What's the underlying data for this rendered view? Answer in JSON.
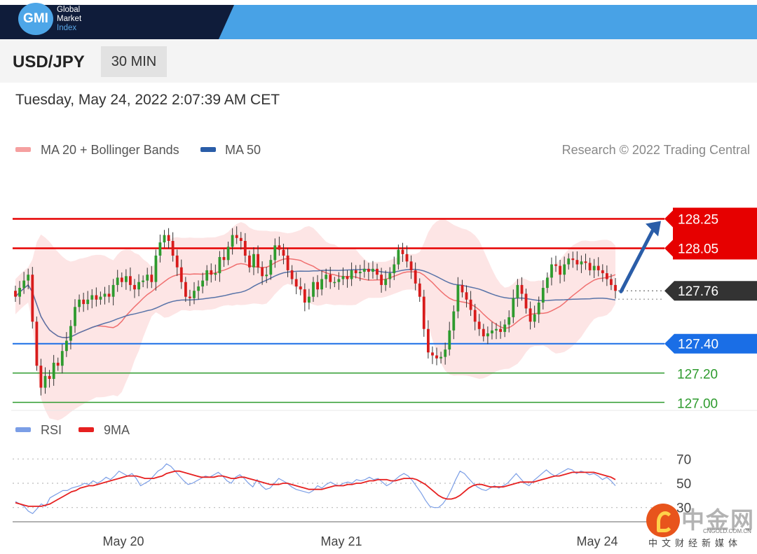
{
  "brand": {
    "logo": "GMI",
    "name_lines": [
      "Global",
      "Market",
      "Index"
    ]
  },
  "header": {
    "pair": "USD/JPY",
    "timeframe": "30 MIN",
    "datetime": "Tuesday, May 24, 2022 2:07:39 AM CET"
  },
  "legend": {
    "ma20": "MA 20 + Bollinger Bands",
    "ma50": "MA 50",
    "credit": "Research © 2022 Trading Central"
  },
  "rsi_legend": {
    "rsi": "RSI",
    "ma9": "9MA"
  },
  "watermark": {
    "title": "中金网",
    "url": "CNGOLD.COM.CN",
    "subtitle": "中文财经新媒体"
  },
  "colors": {
    "resistance": "#e60000",
    "support": "#1a6ee6",
    "target": "#2e9b2e",
    "current": "#333333",
    "candle_up": "#2e9b2e",
    "candle_down": "#d81b1b",
    "ma20": "#f07070",
    "ma50": "#5873a8",
    "band": "#fde0e0",
    "arrow": "#2a5da8",
    "rsi": "#7b9ee6",
    "rsi_ma": "#e62020"
  },
  "chart_data": [
    {
      "type": "candlestick",
      "x_ticks": [
        "May 20",
        "May 21",
        "May 24"
      ],
      "ylim": [
        126.95,
        128.62
      ],
      "current_price": "127.76",
      "levels": [
        {
          "value": 128.25,
          "label": "128.25",
          "kind": "resistance"
        },
        {
          "value": 128.05,
          "label": "128.05",
          "kind": "resistance"
        },
        {
          "value": 127.4,
          "label": "127.40",
          "kind": "support"
        },
        {
          "value": 127.2,
          "label": "127.20",
          "kind": "target"
        },
        {
          "value": 127.0,
          "label": "127.00",
          "kind": "target"
        }
      ],
      "close": [
        127.72,
        127.78,
        127.83,
        127.87,
        127.55,
        127.25,
        127.1,
        127.18,
        127.16,
        127.27,
        127.25,
        127.35,
        127.42,
        127.52,
        127.65,
        127.7,
        127.67,
        127.7,
        127.73,
        127.7,
        127.72,
        127.74,
        127.72,
        127.8,
        127.85,
        127.82,
        127.86,
        127.8,
        127.77,
        127.82,
        127.83,
        127.87,
        127.82,
        128.0,
        128.09,
        128.14,
        128.1,
        128.0,
        127.92,
        127.82,
        127.72,
        127.71,
        127.76,
        127.79,
        127.83,
        127.9,
        127.87,
        127.88,
        127.99,
        127.97,
        128.06,
        128.14,
        128.12,
        128.1,
        128.0,
        127.92,
        128.01,
        127.92,
        127.86,
        127.87,
        127.97,
        128.07,
        128.04,
        128.0,
        127.9,
        127.84,
        127.79,
        127.77,
        127.68,
        127.72,
        127.82,
        127.77,
        127.84,
        127.87,
        127.82,
        127.82,
        127.84,
        127.86,
        127.84,
        127.9,
        127.88,
        127.89,
        127.91,
        127.89,
        127.91,
        127.87,
        127.8,
        127.84,
        127.88,
        127.94,
        128.04,
        128.01,
        127.96,
        127.9,
        127.81,
        127.72,
        127.5,
        127.34,
        127.32,
        127.3,
        127.31,
        127.36,
        127.49,
        127.62,
        127.8,
        127.75,
        127.7,
        127.63,
        127.55,
        127.5,
        127.45,
        127.47,
        127.49,
        127.5,
        127.48,
        127.53,
        127.58,
        127.71,
        127.8,
        127.74,
        127.64,
        127.55,
        127.6,
        127.68,
        127.78,
        127.85,
        127.94,
        127.93,
        127.87,
        127.94,
        127.98,
        127.97,
        127.94,
        127.96,
        127.95,
        127.9,
        127.93,
        127.9,
        127.88,
        127.84,
        127.8,
        127.76
      ],
      "series": [
        {
          "name": "MA 20 + Bollinger Bands"
        },
        {
          "name": "MA 50"
        }
      ]
    },
    {
      "type": "line",
      "x_ticks": [
        "May 20",
        "May 21",
        "May 24"
      ],
      "y_ticks": [
        "70",
        "50",
        "30"
      ],
      "ylim": [
        20,
        80
      ],
      "series": [
        {
          "name": "RSI",
          "values": [
            35,
            33,
            31,
            27,
            25,
            29,
            33,
            31,
            38,
            40,
            42,
            44,
            44,
            46,
            47,
            48,
            50,
            49,
            52,
            50,
            52,
            55,
            53,
            56,
            60,
            58,
            56,
            58,
            54,
            48,
            50,
            52,
            56,
            60,
            62,
            66,
            64,
            60,
            56,
            52,
            49,
            50,
            52,
            54,
            56,
            55,
            57,
            59,
            56,
            52,
            50,
            55,
            57,
            54,
            50,
            47,
            53,
            48,
            45,
            46,
            50,
            54,
            52,
            50,
            47,
            45,
            44,
            43,
            42,
            44,
            48,
            46,
            49,
            51,
            49,
            48,
            50,
            51,
            50,
            53,
            52,
            53,
            55,
            53,
            54,
            51,
            48,
            50,
            53,
            56,
            58,
            56,
            52,
            47,
            42,
            36,
            31,
            30,
            30,
            33,
            38,
            45,
            53,
            60,
            58,
            54,
            50,
            47,
            45,
            44,
            46,
            48,
            46,
            48,
            50,
            54,
            58,
            54,
            50,
            48,
            52,
            55,
            58,
            61,
            58,
            56,
            58,
            60,
            62,
            61,
            58,
            60,
            59,
            57,
            58,
            56,
            53,
            55,
            52,
            48
          ]
        },
        {
          "name": "9MA",
          "values": [
            34,
            33,
            32,
            31,
            31,
            31,
            31,
            32,
            33,
            35,
            37,
            39,
            41,
            43,
            44,
            46,
            47,
            48,
            48,
            49,
            50,
            51,
            52,
            53,
            54,
            55,
            56,
            56,
            56,
            55,
            54,
            54,
            54,
            55,
            56,
            58,
            59,
            60,
            60,
            59,
            58,
            57,
            56,
            55,
            55,
            55,
            55,
            56,
            56,
            55,
            54,
            54,
            55,
            55,
            54,
            53,
            52,
            51,
            50,
            49,
            49,
            49,
            50,
            50,
            49,
            48,
            47,
            46,
            45,
            45,
            45,
            45,
            46,
            47,
            48,
            48,
            48,
            49,
            49,
            50,
            50,
            51,
            52,
            52,
            53,
            53,
            53,
            52,
            52,
            53,
            54,
            54,
            54,
            53,
            51,
            49,
            46,
            43,
            40,
            38,
            37,
            37,
            38,
            40,
            43,
            46,
            48,
            49,
            49,
            48,
            47,
            47,
            47,
            47,
            48,
            49,
            50,
            51,
            51,
            51,
            51,
            52,
            53,
            54,
            55,
            56,
            56,
            57,
            58,
            59,
            59,
            59,
            59,
            59,
            59,
            58,
            57,
            56,
            55,
            53
          ]
        }
      ]
    }
  ]
}
